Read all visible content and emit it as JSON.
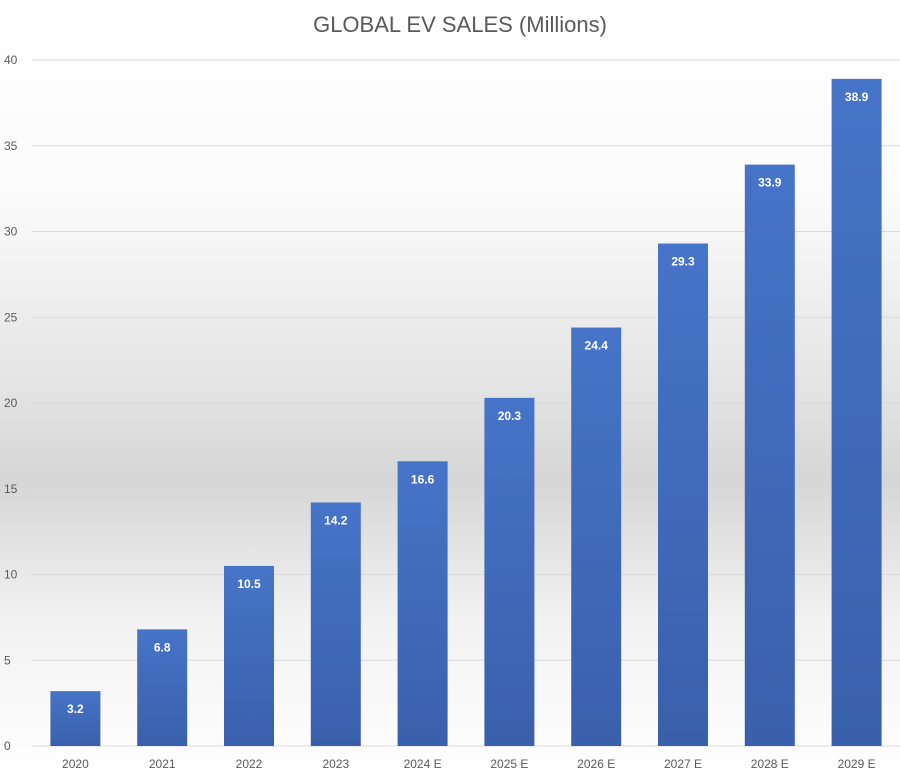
{
  "chart_data": {
    "type": "bar",
    "title": "GLOBAL EV SALES (Millions)",
    "xlabel": "",
    "ylabel": "",
    "categories": [
      "2020",
      "2021",
      "2022",
      "2023",
      "2024 E",
      "2025 E",
      "2026 E",
      "2027 E",
      "2028 E",
      "2029 E"
    ],
    "values": [
      3.2,
      6.8,
      10.5,
      14.2,
      16.6,
      20.3,
      24.4,
      29.3,
      33.9,
      38.9
    ],
    "ylim": [
      0,
      40
    ],
    "yticks": [
      0,
      5,
      10,
      15,
      20,
      25,
      30,
      35,
      40
    ],
    "grid": true,
    "legend": "none",
    "bar_color": "#4472c4",
    "data_labels": true
  }
}
